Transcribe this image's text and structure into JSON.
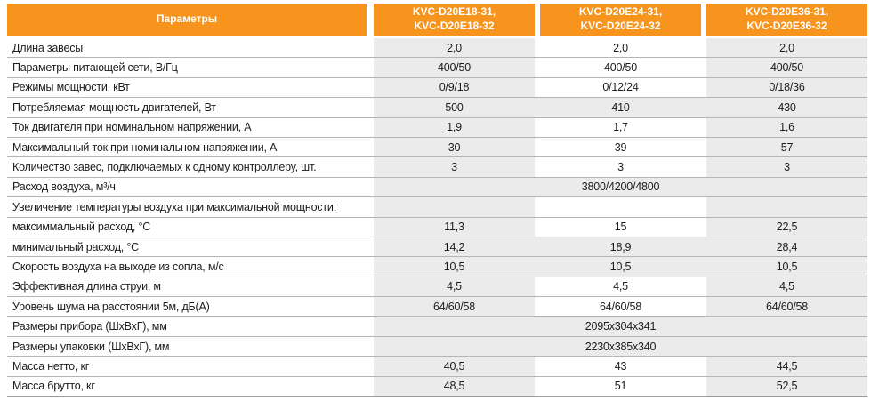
{
  "table": {
    "colors": {
      "accent_orange": "#f7941d",
      "cell_gray": "#ebebeb",
      "row_line": "#b5b5b5",
      "header_text": "#ffffff",
      "body_text": "#1c1c1c"
    },
    "header": {
      "params_label": "Параметры",
      "columns": [
        "KVC-D20E18-31,\nKVC-D20E18-32",
        "KVC-D20E24-31,\nKVC-D20E24-32",
        "KVC-D20E36-31,\nKVC-D20E36-32"
      ]
    },
    "rows": [
      {
        "label": "Длина завесы",
        "type": "normal",
        "values": [
          "2,0",
          "2,0",
          "2,0"
        ]
      },
      {
        "label": "Параметры питающей сети, В/Гц",
        "type": "normal",
        "values": [
          "400/50",
          "400/50",
          "400/50"
        ]
      },
      {
        "label": "Режимы мощности, кВт",
        "type": "normal",
        "values": [
          "0/9/18",
          "0/12/24",
          "0/18/36"
        ]
      },
      {
        "label": "Потребляемая мощность двигателей, Вт",
        "type": "band",
        "values": [
          "500",
          "410",
          "430"
        ]
      },
      {
        "label": "Ток двигателя при номинальном напряжении, А",
        "type": "normal",
        "values": [
          "1,9",
          "1,7",
          "1,6"
        ]
      },
      {
        "label": "Максимальный ток при номинальном напряжении, А",
        "type": "normal",
        "values": [
          "30",
          "39",
          "57"
        ]
      },
      {
        "label": "Количество завес, подключаемых к одному контроллеру, шт.",
        "type": "normal",
        "values": [
          "3",
          "3",
          "3"
        ]
      },
      {
        "label": "Расход воздуха, м³/ч",
        "type": "merged",
        "merged_value": "3800/4200/4800"
      },
      {
        "label": "Увеличение температуры воздуха при максимальной мощности:",
        "type": "normal",
        "values": [
          "",
          "",
          ""
        ]
      },
      {
        "label": "максиммальный расход, °С",
        "type": "normal",
        "values": [
          "11,3",
          "15",
          "22,5"
        ]
      },
      {
        "label": "минимальный расход, °С",
        "type": "band",
        "values": [
          "14,2",
          "18,9",
          "28,4"
        ]
      },
      {
        "label": "Скорость воздуха на выходе из сопла, м/с",
        "type": "band",
        "values": [
          "10,5",
          "10,5",
          "10,5"
        ]
      },
      {
        "label": "Эффективная длина струи, м",
        "type": "normal",
        "values": [
          "4,5",
          "4,5",
          "4,5"
        ]
      },
      {
        "label": "Уровень шума на расстоянии 5м, дБ(А)",
        "type": "normal",
        "values": [
          "64/60/58",
          "64/60/58",
          "64/60/58"
        ]
      },
      {
        "label": "Размеры прибора (ШхВхГ), мм",
        "type": "merged",
        "merged_value": "2095x304x341"
      },
      {
        "label": "Размеры упаковки (ШхВхГ), мм",
        "type": "merged",
        "merged_value": "2230x385x340"
      },
      {
        "label": "Масса нетто, кг",
        "type": "normal",
        "values": [
          "40,5",
          "43",
          "44,5"
        ]
      },
      {
        "label": "Масса брутто, кг",
        "type": "normal",
        "values": [
          "48,5",
          "51",
          "52,5"
        ]
      }
    ]
  }
}
